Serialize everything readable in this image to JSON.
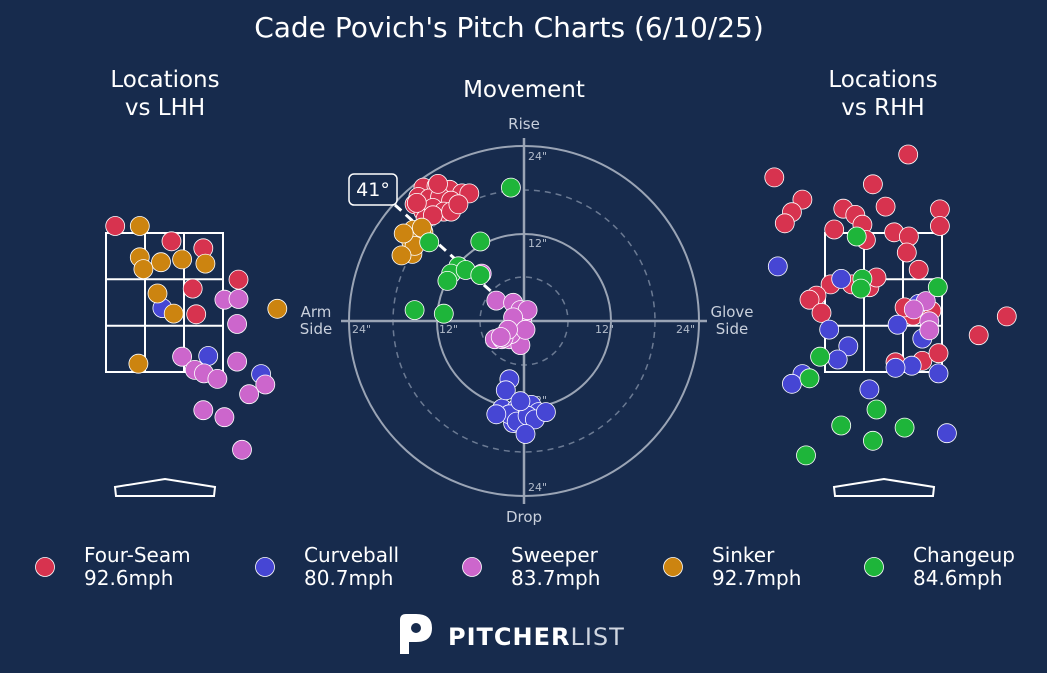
{
  "title": "Cade Povich's Pitch Charts (6/10/25)",
  "panels": {
    "lhh_title": [
      "Locations",
      "vs LHH"
    ],
    "movement_title": "Movement",
    "rhh_title": [
      "Locations",
      "vs RHH"
    ]
  },
  "movement_axes": {
    "top": "Rise",
    "bottom": "Drop",
    "left": [
      "Arm",
      "Side"
    ],
    "right": [
      "Glove",
      "Side"
    ],
    "tick_labels": [
      "24\"",
      "12\"",
      "12\"",
      "24\"",
      "24\"",
      "12\"",
      "12\"",
      "24\""
    ],
    "arm_angle_label": "41°"
  },
  "colors": {
    "background": "#172b4d",
    "Four-Seam": "#d7334f",
    "Curveball": "#4646d4",
    "Sweeper": "#cc66cc",
    "Sinker": "#cc8410",
    "Changeup": "#1eb53a"
  },
  "legend": [
    {
      "name": "Four-Seam",
      "speed": "92.6mph"
    },
    {
      "name": "Curveball",
      "speed": "80.7mph"
    },
    {
      "name": "Sweeper",
      "speed": "83.7mph"
    },
    {
      "name": "Sinker",
      "speed": "92.7mph"
    },
    {
      "name": "Changeup",
      "speed": "84.6mph"
    }
  ],
  "logo": {
    "bold": "PITCHER",
    "light": "LIST"
  },
  "chart_data": [
    {
      "type": "scatter",
      "name": "Movement",
      "units": "inches",
      "xlim": [
        -24,
        24
      ],
      "ylim": [
        -24,
        24
      ],
      "arm_angle_deg": 41,
      "series": [
        {
          "name": "Four-Seam",
          "points": [
            [
              -13.8,
              18.3
            ],
            [
              -12,
              18.5
            ],
            [
              -10.2,
              18
            ],
            [
              -8.5,
              17.5
            ],
            [
              -14.5,
              17
            ],
            [
              -13,
              16.8
            ],
            [
              -11.5,
              17
            ],
            [
              -10,
              16.5
            ],
            [
              -15,
              16
            ],
            [
              -13.8,
              15
            ],
            [
              -12.5,
              15.5
            ],
            [
              -11,
              15
            ],
            [
              -13.5,
              14
            ],
            [
              -12.5,
              14.5
            ],
            [
              -10,
              15
            ],
            [
              -7.5,
              17.5
            ],
            [
              -9,
              16
            ],
            [
              -14.7,
              16.2
            ],
            [
              -11.8,
              18.8
            ]
          ]
        },
        {
          "name": "Curveball",
          "points": [
            [
              -2,
              -8
            ],
            [
              -3,
              -12
            ],
            [
              -1,
              -12
            ],
            [
              0,
              -13
            ],
            [
              1,
              -11.5
            ],
            [
              2,
              -12.5
            ],
            [
              -1.5,
              -14
            ],
            [
              -2,
              -12.8
            ],
            [
              -1,
              -13.8
            ],
            [
              0.5,
              -13
            ],
            [
              1.5,
              -13.5
            ],
            [
              3,
              -12.5
            ],
            [
              0.2,
              -15.5
            ],
            [
              -2.5,
              -9.5
            ],
            [
              -3.8,
              -12.8
            ],
            [
              -0.5,
              -11
            ]
          ]
        },
        {
          "name": "Sweeper",
          "points": [
            [
              -5.8,
              6.5
            ],
            [
              -3.8,
              2.8
            ],
            [
              -1.5,
              2.5
            ],
            [
              -0.5,
              1.5
            ],
            [
              -0.2,
              0.5
            ],
            [
              0.5,
              1.5
            ],
            [
              -4,
              -2.5
            ],
            [
              -3,
              -2.5
            ],
            [
              -2,
              -2.5
            ],
            [
              -0.5,
              -3.3
            ],
            [
              -1.8,
              -1.8
            ],
            [
              -1.5,
              0.5
            ],
            [
              0.2,
              -1.2
            ],
            [
              -2.8,
              -2.3
            ],
            [
              -2.2,
              -1.2
            ],
            [
              -3.2,
              -2.2
            ]
          ]
        },
        {
          "name": "Sinker",
          "points": [
            [
              -15.2,
              12.5
            ],
            [
              -13.8,
              12.2
            ],
            [
              -15.5,
              11
            ],
            [
              -14.5,
              11.5
            ],
            [
              -15.3,
              9.2
            ],
            [
              -14,
              12.8
            ],
            [
              -15,
              10.3
            ],
            [
              -16.5,
              12
            ],
            [
              -16.8,
              9
            ]
          ]
        },
        {
          "name": "Changeup",
          "points": [
            [
              -1.8,
              18.3
            ],
            [
              -13,
              10.8
            ],
            [
              -6,
              10.9
            ],
            [
              -9,
              7.5
            ],
            [
              -10,
              6.5
            ],
            [
              -8,
              7
            ],
            [
              -6,
              6.3
            ],
            [
              -10.5,
              5.5
            ],
            [
              -15,
              1.5
            ],
            [
              -11,
              1
            ]
          ]
        }
      ]
    },
    {
      "type": "scatter",
      "name": "Locations vs LHH",
      "units": "feet",
      "xlim": [
        -1.73,
        1.73
      ],
      "ylim": [
        -0.56,
        5.57
      ],
      "strike_zone": {
        "x": [
          -0.83,
          0.83
        ],
        "z": [
          1.5,
          3.5
        ]
      },
      "series": [
        {
          "name": "Four-Seam",
          "points": [
            [
              -0.7,
              3.6
            ],
            [
              0.1,
              3.38
            ],
            [
              0.55,
              3.28
            ],
            [
              0.4,
              2.7
            ],
            [
              1.05,
              2.83
            ],
            [
              0.45,
              2.33
            ]
          ]
        },
        {
          "name": "Curveball",
          "points": [
            [
              -0.03,
              2.42
            ],
            [
              0.62,
              1.73
            ],
            [
              1.37,
              1.47
            ]
          ]
        },
        {
          "name": "Sweeper",
          "points": [
            [
              0.85,
              2.54
            ],
            [
              1.05,
              2.55
            ],
            [
              1.03,
              2.19
            ],
            [
              0.25,
              1.72
            ],
            [
              0.43,
              1.53
            ],
            [
              0.56,
              1.48
            ],
            [
              0.75,
              1.4
            ],
            [
              1.03,
              1.65
            ],
            [
              1.43,
              1.32
            ],
            [
              1.2,
              1.18
            ],
            [
              0.55,
              0.95
            ],
            [
              0.85,
              0.85
            ],
            [
              1.1,
              0.38
            ]
          ]
        },
        {
          "name": "Sinker",
          "points": [
            [
              -0.35,
              3.6
            ],
            [
              -0.35,
              3.15
            ],
            [
              -0.05,
              3.08
            ],
            [
              0.25,
              3.12
            ],
            [
              0.58,
              3.06
            ],
            [
              -0.3,
              2.98
            ],
            [
              -0.1,
              2.63
            ],
            [
              0.13,
              2.34
            ],
            [
              1.6,
              2.41
            ],
            [
              -0.37,
              1.62
            ]
          ]
        }
      ]
    },
    {
      "type": "scatter",
      "name": "Locations vs RHH",
      "units": "feet",
      "xlim": [
        -1.73,
        1.73
      ],
      "ylim": [
        -0.56,
        5.57
      ],
      "strike_zone": {
        "x": [
          -0.83,
          0.83
        ],
        "z": [
          1.5,
          3.5
        ]
      },
      "series": [
        {
          "name": "Four-Seam",
          "points": [
            [
              0.35,
              4.63
            ],
            [
              -1.55,
              4.3
            ],
            [
              -0.15,
              4.2
            ],
            [
              -1.15,
              3.98
            ],
            [
              0.03,
              3.88
            ],
            [
              -0.57,
              3.85
            ],
            [
              -0.4,
              3.76
            ],
            [
              -1.3,
              3.8
            ],
            [
              0.8,
              3.84
            ],
            [
              -0.3,
              3.62
            ],
            [
              -1.4,
              3.64
            ],
            [
              0.15,
              3.51
            ],
            [
              0.36,
              3.45
            ],
            [
              -0.25,
              3.4
            ],
            [
              -0.7,
              3.55
            ],
            [
              0.33,
              3.22
            ],
            [
              0.8,
              3.6
            ],
            [
              0.5,
              2.97
            ],
            [
              -0.75,
              2.76
            ],
            [
              -0.95,
              2.6
            ],
            [
              -0.2,
              2.72
            ],
            [
              -0.45,
              2.76
            ],
            [
              -0.1,
              2.86
            ],
            [
              0.68,
              2.38
            ],
            [
              -1.05,
              2.54
            ],
            [
              0.42,
              2.31
            ],
            [
              0.3,
              2.43
            ],
            [
              -0.88,
              2.35
            ],
            [
              1.35,
              2.03
            ],
            [
              1.75,
              2.3
            ],
            [
              0.17,
              1.64
            ],
            [
              0.55,
              1.66
            ],
            [
              0.78,
              1.77
            ]
          ]
        },
        {
          "name": "Curveball",
          "points": [
            [
              -1.5,
              3.02
            ],
            [
              -0.6,
              2.84
            ],
            [
              0.2,
              2.18
            ],
            [
              0.5,
              2.48
            ],
            [
              -0.77,
              2.11
            ],
            [
              0.55,
              1.98
            ],
            [
              -0.5,
              1.87
            ],
            [
              -0.65,
              1.68
            ],
            [
              0.4,
              1.59
            ],
            [
              0.17,
              1.56
            ],
            [
              0.78,
              1.48
            ],
            [
              -1.15,
              1.47
            ],
            [
              -1.3,
              1.33
            ],
            [
              -0.2,
              1.25
            ],
            [
              0.9,
              0.62
            ]
          ]
        },
        {
          "name": "Sweeper",
          "points": [
            [
              0.6,
              2.52
            ],
            [
              0.65,
              2.23
            ],
            [
              0.43,
              2.4
            ],
            [
              0.65,
              2.1
            ]
          ]
        },
        {
          "name": "Changeup",
          "points": [
            [
              -0.38,
              3.45
            ],
            [
              -0.3,
              2.84
            ],
            [
              -0.32,
              2.7
            ],
            [
              0.77,
              2.72
            ],
            [
              -0.9,
              1.72
            ],
            [
              -1.05,
              1.41
            ],
            [
              -0.1,
              0.96
            ],
            [
              -0.6,
              0.73
            ],
            [
              0.3,
              0.7
            ],
            [
              -0.15,
              0.51
            ],
            [
              -1.1,
              0.3
            ]
          ]
        }
      ]
    }
  ]
}
